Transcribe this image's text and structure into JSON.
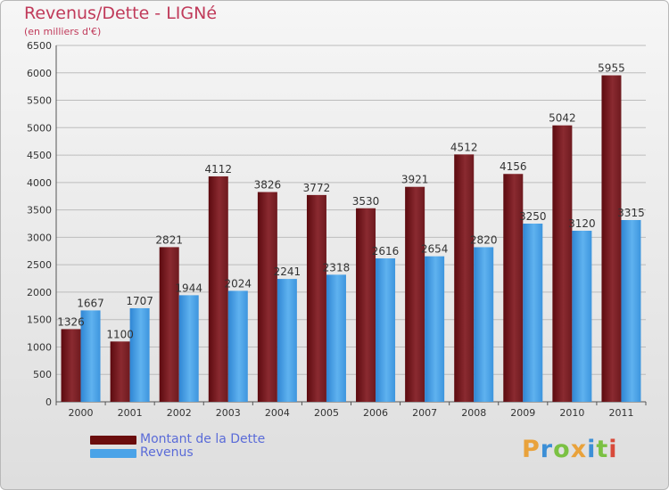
{
  "page": {
    "title": "Revenus/Dette - LIGNé",
    "subtitle": "(en milliers d'€)"
  },
  "chart_data": {
    "type": "bar",
    "title": "Revenus/Dette - LIGNé",
    "subtitle": "(en milliers d'€)",
    "xlabel": "",
    "ylabel": "",
    "categories": [
      "2000",
      "2001",
      "2002",
      "2003",
      "2004",
      "2005",
      "2006",
      "2007",
      "2008",
      "2009",
      "2010",
      "2011"
    ],
    "ylim": [
      0,
      6500
    ],
    "yticks": [
      0,
      500,
      1000,
      1500,
      2000,
      2500,
      3000,
      3500,
      4000,
      4500,
      5000,
      5500,
      6000,
      6500
    ],
    "grid": true,
    "legend_position": "bottom-left",
    "series": [
      {
        "name": "Montant de la Dette",
        "color": "#7a1f25",
        "values": [
          1326,
          1100,
          2821,
          4112,
          3826,
          3772,
          3530,
          3921,
          4512,
          4156,
          5042,
          5955
        ]
      },
      {
        "name": "Revenus",
        "color": "#4aa3e8",
        "values": [
          1667,
          1707,
          1944,
          2024,
          2241,
          2318,
          2616,
          2654,
          2820,
          3250,
          3120,
          3315
        ]
      }
    ]
  },
  "legend": [
    {
      "label": "Montant de la Dette",
      "color": "#6a0d0d"
    },
    {
      "label": "Revenus",
      "color": "#4aa3e8"
    }
  ],
  "brand": {
    "letters": [
      "P",
      "r",
      "o",
      "x",
      "i",
      "t",
      "i"
    ],
    "colors": [
      "#e9a23b",
      "#3c8fd6",
      "#7bc143",
      "#e9a23b",
      "#3c8fd6",
      "#7bc143",
      "#d84a3a"
    ]
  }
}
